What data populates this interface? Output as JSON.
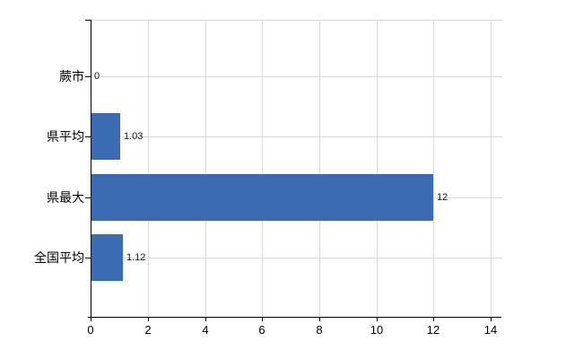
{
  "chart_data": {
    "type": "bar",
    "orientation": "horizontal",
    "title": "",
    "xlabel": "",
    "ylabel": "",
    "categories": [
      "蕨市",
      "県平均",
      "県最大",
      "全国平均"
    ],
    "values": [
      0,
      1.03,
      12,
      1.12
    ],
    "value_labels": [
      "0",
      "1.03",
      "12",
      "1.12"
    ],
    "x_ticks": [
      0,
      2,
      4,
      6,
      8,
      10,
      12,
      14
    ],
    "x_tick_labels": [
      "0",
      "2",
      "4",
      "6",
      "8",
      "10",
      "12",
      "14"
    ],
    "xlim": [
      0,
      14.4
    ],
    "grid": true,
    "legend": false,
    "colors": {
      "bar": "#3b6cb3",
      "grid": "#d9d9d9",
      "axis": "#000000",
      "background": "#ffffff",
      "value_text": "#111111"
    }
  }
}
